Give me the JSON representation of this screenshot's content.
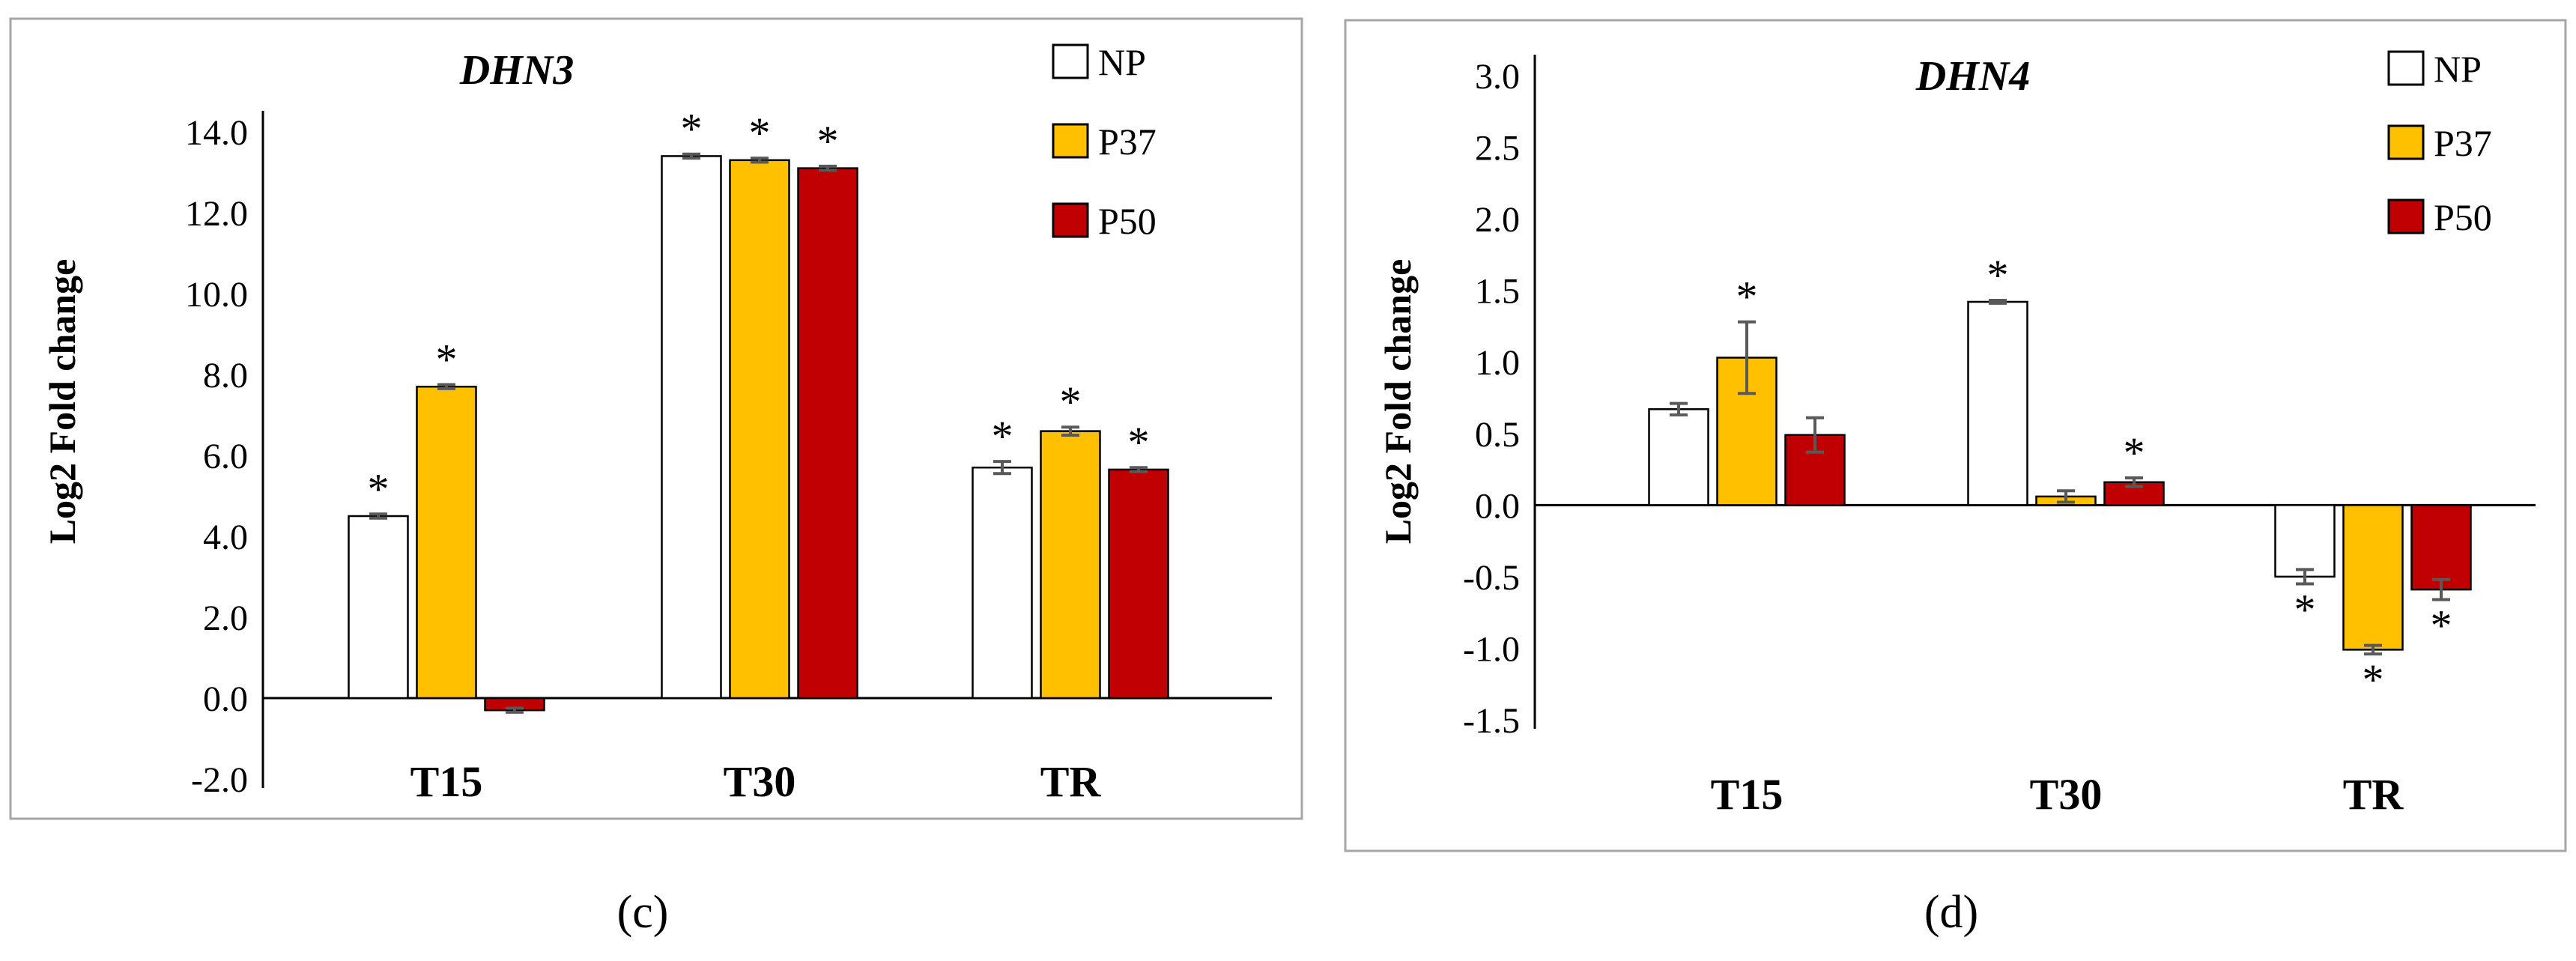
{
  "chart_data": [
    {
      "type": "bar",
      "title": "DHN3",
      "panel_label": "(c)",
      "xlabel": "",
      "ylabel": "Log2 Fold change",
      "categories": [
        "T15",
        "T30",
        "TR"
      ],
      "ylim": [
        -2.0,
        14.0
      ],
      "yticks": [
        -2.0,
        0.0,
        2.0,
        4.0,
        6.0,
        8.0,
        10.0,
        12.0,
        14.0
      ],
      "ytick_labels": [
        "-2.0",
        "0.0",
        "2.0",
        "4.0",
        "6.0",
        "8.0",
        "10.0",
        "12.0",
        "14.0"
      ],
      "legend_position": "top-right",
      "series": [
        {
          "name": "NP",
          "color": "#ffffff",
          "values": [
            4.5,
            13.4,
            5.7
          ],
          "errors": [
            0.05,
            0.05,
            0.15
          ],
          "significant": [
            true,
            true,
            true
          ]
        },
        {
          "name": "P37",
          "color": "#ffc000",
          "values": [
            7.7,
            13.3,
            6.6
          ],
          "errors": [
            0.05,
            0.05,
            0.1
          ],
          "significant": [
            true,
            true,
            true
          ]
        },
        {
          "name": "P50",
          "color": "#c00000",
          "values": [
            -0.3,
            13.1,
            5.65
          ],
          "errors": [
            0.05,
            0.05,
            0.05
          ],
          "significant": [
            false,
            true,
            true
          ]
        }
      ],
      "significance_marker": "*"
    },
    {
      "type": "bar",
      "title": "DHN4",
      "panel_label": "(d)",
      "xlabel": "",
      "ylabel": "Log2 Fold change",
      "categories": [
        "T15",
        "T30",
        "TR"
      ],
      "ylim": [
        -1.5,
        3.0
      ],
      "yticks": [
        -1.5,
        -1.0,
        -0.5,
        0.0,
        0.5,
        1.0,
        1.5,
        2.0,
        2.5,
        3.0
      ],
      "ytick_labels": [
        "-1.5",
        "-1.0",
        "-0.5",
        "0.0",
        "0.5",
        "1.0",
        "1.5",
        "2.0",
        "2.5",
        "3.0"
      ],
      "legend_position": "top-right",
      "series": [
        {
          "name": "NP",
          "color": "#ffffff",
          "values": [
            0.67,
            1.42,
            -0.5
          ],
          "errors": [
            0.04,
            0.01,
            0.05
          ],
          "significant": [
            false,
            true,
            true
          ]
        },
        {
          "name": "P37",
          "color": "#ffc000",
          "values": [
            1.03,
            0.06,
            -1.01
          ],
          "errors": [
            0.25,
            0.04,
            0.03
          ],
          "significant": [
            true,
            false,
            true
          ]
        },
        {
          "name": "P50",
          "color": "#c00000",
          "values": [
            0.49,
            0.16,
            -0.59
          ],
          "errors": [
            0.12,
            0.03,
            0.07
          ],
          "significant": [
            false,
            true,
            true
          ]
        }
      ],
      "significance_marker": "*"
    }
  ]
}
